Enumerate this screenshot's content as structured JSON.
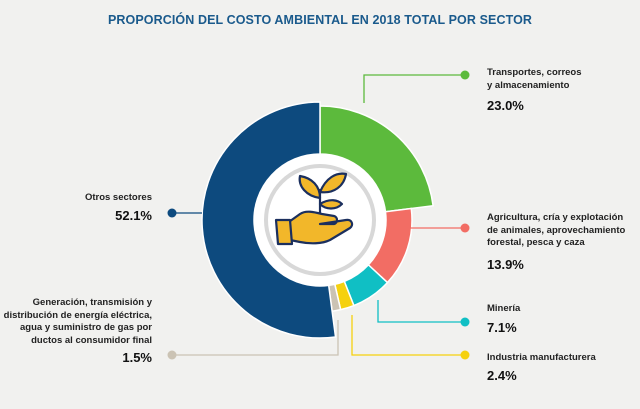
{
  "chart_data": {
    "type": "pie",
    "title": "PROPORCIÓN DEL COSTO AMBIENTAL EN 2018 TOTAL POR SECTOR",
    "unit": "%",
    "slices": [
      {
        "label": "Transportes, correos y almacenamiento",
        "value": 23.0,
        "value_label": "23.0%",
        "color": "#5cba3c"
      },
      {
        "label": "Agricultura, cría y explotación de animales, aprovechamiento forestal, pesca y caza",
        "value": 13.9,
        "value_label": "13.9%",
        "color": "#f26d64"
      },
      {
        "label": "Minería",
        "value": 7.1,
        "value_label": "7.1%",
        "color": "#10bfc4"
      },
      {
        "label": "Industria manufacturera",
        "value": 2.4,
        "value_label": "2.4%",
        "color": "#f5d10f"
      },
      {
        "label": "Generación, transmisión y distribución de energía eléctrica, agua y suministro de gas por ductos al consumidor final",
        "value": 1.5,
        "value_label": "1.5%",
        "color": "#cbc3b4"
      },
      {
        "label": "Otros sectores",
        "value": 52.1,
        "value_label": "52.1%",
        "color": "#0d4a7e"
      }
    ],
    "legend_lines": {
      "transportes": [
        "Transportes, correos",
        "y almacenamiento"
      ],
      "agricultura": [
        "Agricultura, cría y explotación",
        "de animales, aprovechamiento",
        "forestal, pesca y caza"
      ],
      "mineria": [
        "Minería"
      ],
      "industria": [
        "Industria manufacturera"
      ],
      "generacion": [
        "Generación, transmisión y",
        "distribución de energía eléctrica,",
        "agua y suministro de gas por",
        "ductos al consumidor final"
      ],
      "otros": [
        "Otros sectores"
      ]
    },
    "center_icon": "plant-in-hand-icon"
  }
}
